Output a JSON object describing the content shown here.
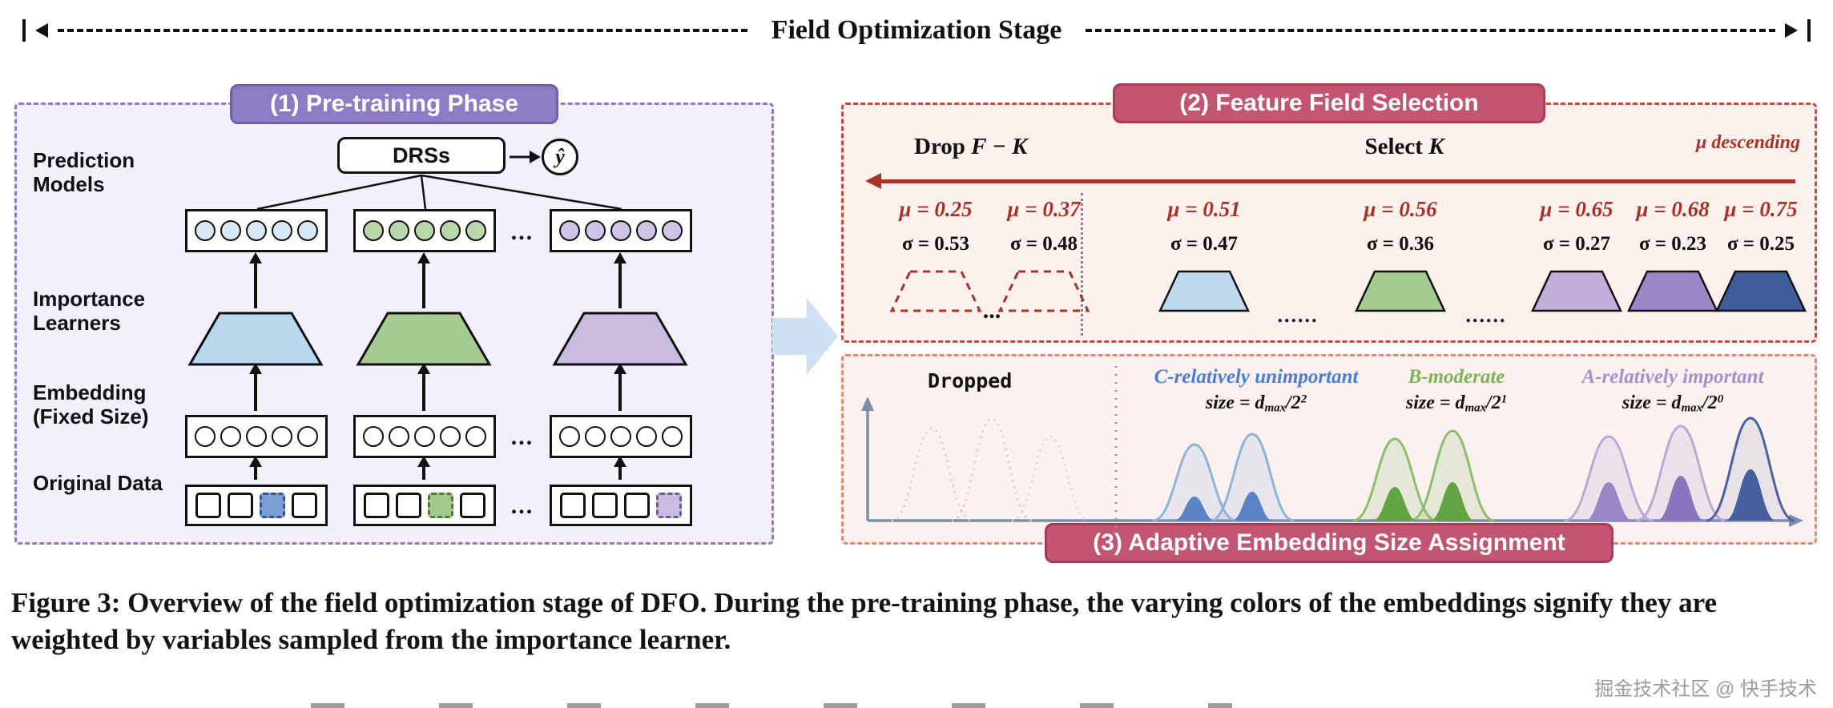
{
  "header": {
    "title": "Field Optimization Stage"
  },
  "panel1": {
    "badge": "(1) Pre-training Phase",
    "labels": {
      "prediction": "Prediction Models",
      "importance": "Importance Learners",
      "embedding": "Embedding (Fixed Size)",
      "original": "Original Data"
    },
    "drss": "DRSs",
    "yhat": "ŷ",
    "ellipsis": "..."
  },
  "panel2": {
    "badge": "(2) Feature Field Selection",
    "drop_prefix": "Drop ",
    "drop_math": "F − K",
    "select_prefix": "Select ",
    "select_math": "K",
    "mu_descending": "μ descending",
    "dropped": [
      {
        "mu": "μ = 0.25",
        "sigma": "σ = 0.53"
      },
      {
        "mu": "μ = 0.37",
        "sigma": "σ = 0.48"
      }
    ],
    "dropped_ellipsis": "...",
    "selected": [
      {
        "mu": "μ = 0.51",
        "sigma": "σ = 0.47"
      },
      {
        "mu": "μ = 0.56",
        "sigma": "σ = 0.36"
      },
      {
        "mu": "μ = 0.65",
        "sigma": "σ = 0.27"
      },
      {
        "mu": "μ = 0.68",
        "sigma": "σ = 0.23"
      },
      {
        "mu": "μ = 0.75",
        "sigma": "σ = 0.25"
      }
    ],
    "select_ellipsis": "......"
  },
  "panel3": {
    "badge": "(3) Adaptive Embedding Size Assignment",
    "dropped_label": "Dropped",
    "groups": [
      {
        "name": "C-relatively unimportant",
        "size_prefix": "size = d",
        "size_sub": "max",
        "size_mid": "/2",
        "size_sup": "2"
      },
      {
        "name": "B-moderate",
        "size_prefix": "size = d",
        "size_sub": "max",
        "size_mid": "/2",
        "size_sup": "1"
      },
      {
        "name": "A-relatively important",
        "size_prefix": "size = d",
        "size_sub": "max",
        "size_mid": "/2",
        "size_sup": "0"
      }
    ]
  },
  "caption": "Figure 3: Overview of the field optimization stage of DFO. During the pre-training phase, the varying colors of the embeddings signify they are weighted by variables sampled from the importance learner.",
  "watermark": "掘金技术社区 @ 快手技术",
  "colors": {
    "purple_badge": "#8d7cc4",
    "crimson_badge": "#c25672",
    "dark_red": "#a93226",
    "trap_blue": "#b8d8ee",
    "trap_green": "#a6cb90",
    "trap_light_purple": "#c9bce0",
    "trap_medium_purple": "#9b86c8",
    "trap_navy": "#3f5d9b"
  }
}
